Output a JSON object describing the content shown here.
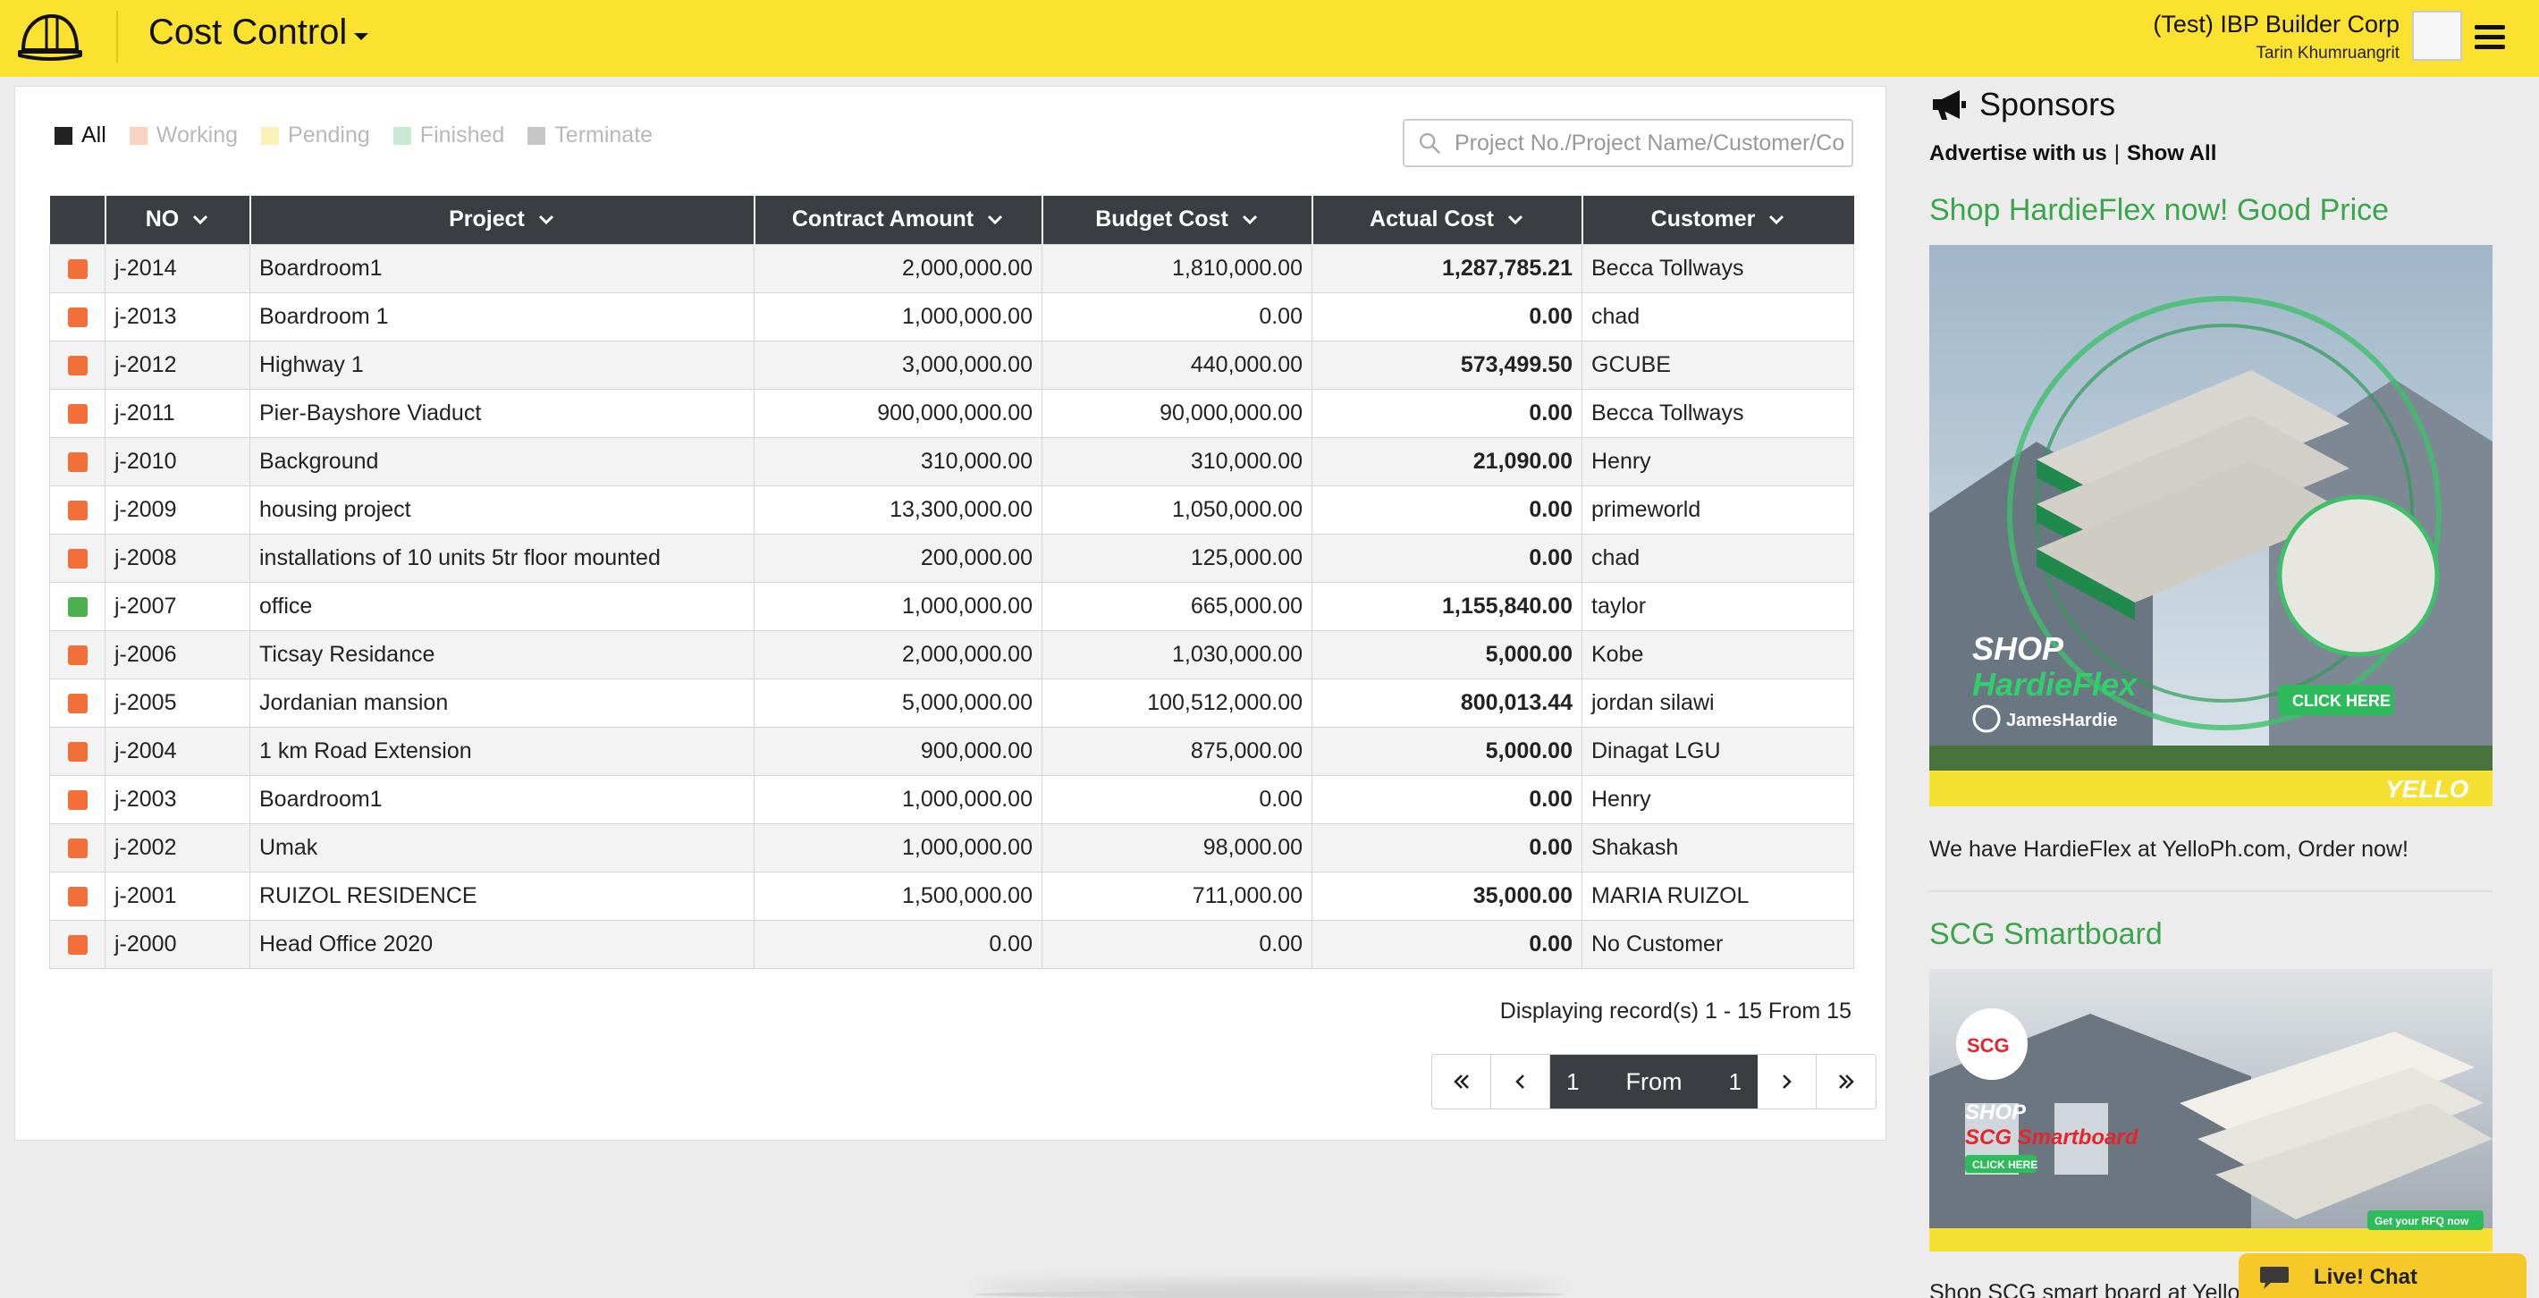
{
  "header": {
    "title": "Cost Control",
    "company": "(Test) IBP Builder Corp",
    "user": "Tarin Khumruangrit",
    "colors": {
      "bar": "#fbe22f"
    }
  },
  "filters": [
    {
      "label": "All",
      "color": "#222222",
      "active": true
    },
    {
      "label": "Working",
      "color": "#f9d2c0",
      "active": false
    },
    {
      "label": "Pending",
      "color": "#fcf1b9",
      "active": false
    },
    {
      "label": "Finished",
      "color": "#c8ead3",
      "active": false
    },
    {
      "label": "Terminate",
      "color": "#c6c6c6",
      "active": false
    }
  ],
  "search": {
    "placeholder": "Project No./Project Name/Customer/Co"
  },
  "table": {
    "columns": [
      "NO",
      "Project",
      "Contract Amount",
      "Budget Cost",
      "Actual Cost",
      "Customer"
    ],
    "status_colors": {
      "working": "#f26f3a",
      "finished": "#4caf50"
    },
    "rows": [
      {
        "status": "working",
        "no": "j-2014",
        "project": "Boardroom1",
        "contract": "2,000,000.00",
        "budget": "1,810,000.00",
        "actual": "1,287,785.21",
        "customer": "Becca Tollways"
      },
      {
        "status": "working",
        "no": "j-2013",
        "project": "Boardroom 1",
        "contract": "1,000,000.00",
        "budget": "0.00",
        "actual": "0.00",
        "customer": "chad"
      },
      {
        "status": "working",
        "no": "j-2012",
        "project": "Highway 1",
        "contract": "3,000,000.00",
        "budget": "440,000.00",
        "actual": "573,499.50",
        "customer": "GCUBE"
      },
      {
        "status": "working",
        "no": "j-2011",
        "project": "Pier-Bayshore Viaduct",
        "contract": "900,000,000.00",
        "budget": "90,000,000.00",
        "actual": "0.00",
        "customer": "Becca Tollways"
      },
      {
        "status": "working",
        "no": "j-2010",
        "project": "Background",
        "contract": "310,000.00",
        "budget": "310,000.00",
        "actual": "21,090.00",
        "customer": "Henry"
      },
      {
        "status": "working",
        "no": "j-2009",
        "project": "housing project",
        "contract": "13,300,000.00",
        "budget": "1,050,000.00",
        "actual": "0.00",
        "customer": "primeworld"
      },
      {
        "status": "working",
        "no": "j-2008",
        "project": "installations of 10 units 5tr floor mounted",
        "contract": "200,000.00",
        "budget": "125,000.00",
        "actual": "0.00",
        "customer": "chad"
      },
      {
        "status": "finished",
        "no": "j-2007",
        "project": "office",
        "contract": "1,000,000.00",
        "budget": "665,000.00",
        "actual": "1,155,840.00",
        "customer": "taylor"
      },
      {
        "status": "working",
        "no": "j-2006",
        "project": "Ticsay Residance",
        "contract": "2,000,000.00",
        "budget": "1,030,000.00",
        "actual": "5,000.00",
        "customer": "Kobe"
      },
      {
        "status": "working",
        "no": "j-2005",
        "project": "Jordanian mansion",
        "contract": "5,000,000.00",
        "budget": "100,512,000.00",
        "actual": "800,013.44",
        "customer": "jordan silawi"
      },
      {
        "status": "working",
        "no": "j-2004",
        "project": "1 km Road Extension",
        "contract": "900,000.00",
        "budget": "875,000.00",
        "actual": "5,000.00",
        "customer": "Dinagat LGU"
      },
      {
        "status": "working",
        "no": "j-2003",
        "project": "Boardroom1",
        "contract": "1,000,000.00",
        "budget": "0.00",
        "actual": "0.00",
        "customer": "Henry"
      },
      {
        "status": "working",
        "no": "j-2002",
        "project": "Umak",
        "contract": "1,000,000.00",
        "budget": "98,000.00",
        "actual": "0.00",
        "customer": "Shakash"
      },
      {
        "status": "working",
        "no": "j-2001",
        "project": "RUIZOL RESIDENCE",
        "contract": "1,500,000.00",
        "budget": "711,000.00",
        "actual": "35,000.00",
        "customer": "MARIA RUIZOL"
      },
      {
        "status": "working",
        "no": "j-2000",
        "project": "Head Office 2020",
        "contract": "0.00",
        "budget": "0.00",
        "actual": "0.00",
        "customer": "No Customer"
      }
    ]
  },
  "pagination": {
    "records_text": "Displaying record(s) 1 - 15 From 15",
    "current_page": "1",
    "from_label": "From",
    "total_pages": "1"
  },
  "sidebar": {
    "title": "Sponsors",
    "advertise_label": "Advertise with us",
    "separator": "|",
    "show_all_label": "Show All",
    "ads": [
      {
        "title": "Shop HardieFlex now! Good Price",
        "image_text": {
          "shop": "SHOP",
          "product": "HardieFlex",
          "brand": "JamesHardie",
          "cta": "CLICK HERE",
          "seller": "YELLO"
        },
        "text": "We have HardieFlex at YelloPh.com, Order now!"
      },
      {
        "title": "SCG Smartboard",
        "image_text": {
          "logo": "SCG",
          "shop": "SHOP",
          "product": "SCG Smartboard",
          "cta": "CLICK HERE",
          "rfq": "Get your RFQ now"
        },
        "text": "Shop SCG smart board at Yello"
      }
    ],
    "accent_color": "#3aa64b"
  },
  "livechat": {
    "label": "Live! Chat",
    "color": "#f7c928"
  }
}
